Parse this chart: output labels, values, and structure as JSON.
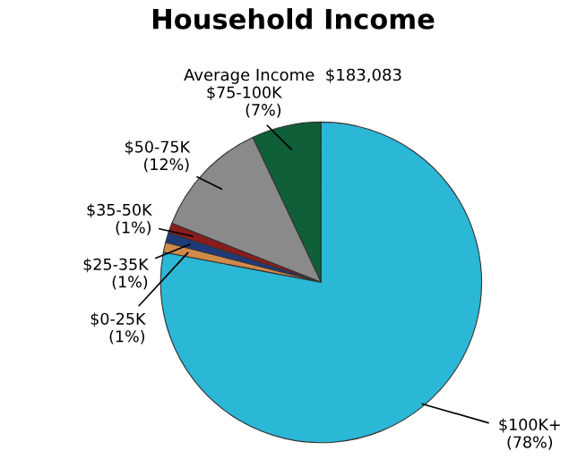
{
  "chart_data": {
    "type": "pie",
    "title": "Household Income",
    "subtitle": "Average Income  $183,083",
    "categories": [
      "$75-100K",
      "$50-75K",
      "$35-50K",
      "$25-35K",
      "$0-25K",
      "$100K+"
    ],
    "values": [
      7,
      12,
      1,
      1,
      1,
      78
    ],
    "value_labels": [
      "(7%)",
      "(12%)",
      "(1%)",
      "(1%)",
      "(1%)",
      "(78%)"
    ],
    "colors": [
      "#0f5f38",
      "#8a8a8a",
      "#8b1c1c",
      "#1f3a7a",
      "#d08a4a",
      "#2bb7d6"
    ],
    "legend": false
  }
}
